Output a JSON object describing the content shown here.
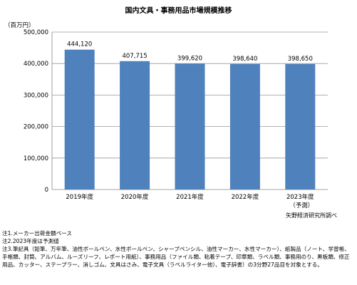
{
  "chart_data": {
    "type": "bar",
    "title": "国内文具・事務用品市場規模推移",
    "ylabel": "（百万円）",
    "categories": [
      "2019年度",
      "2020年度",
      "2021年度",
      "2022年度",
      "2023年度"
    ],
    "category_sublabels": [
      "",
      "",
      "",
      "",
      "（予測）"
    ],
    "values": [
      444120,
      407715,
      399620,
      398640,
      398650
    ],
    "value_labels": [
      "444,120",
      "407,715",
      "399,620",
      "398,640",
      "398,650"
    ],
    "ylim": [
      0,
      500000
    ],
    "yticks": [
      0,
      100000,
      200000,
      300000,
      400000,
      500000
    ],
    "ytick_labels": [
      "0",
      "100,000",
      "200,000",
      "300,000",
      "400,000",
      "500,000"
    ],
    "grid": true,
    "bar_color": "#4f81bd"
  },
  "source": "矢野経済研究所調べ",
  "notes": [
    "注1.メーカー出荷金額ベース",
    "注2.2023年度は予測値",
    "注3.筆記具（鉛筆、万年筆、油性ボールペン、水性ボールペン、シャープペンシル、油性マーカー、水性マーカー）、紙製品（ノート、学習帳、手帳類、封筒、アルバム、ルーズリーフ、レポート用紙）、事務用品（ファイル類、粘着テープ、印章類、ラベル類、事務用のり、黒板類、修正用品、カッター、ステープラー、消しゴム、文具はさみ、電子文具（ラベルライター他）、電子辞書）の3分野27品目を対象とする。"
  ]
}
